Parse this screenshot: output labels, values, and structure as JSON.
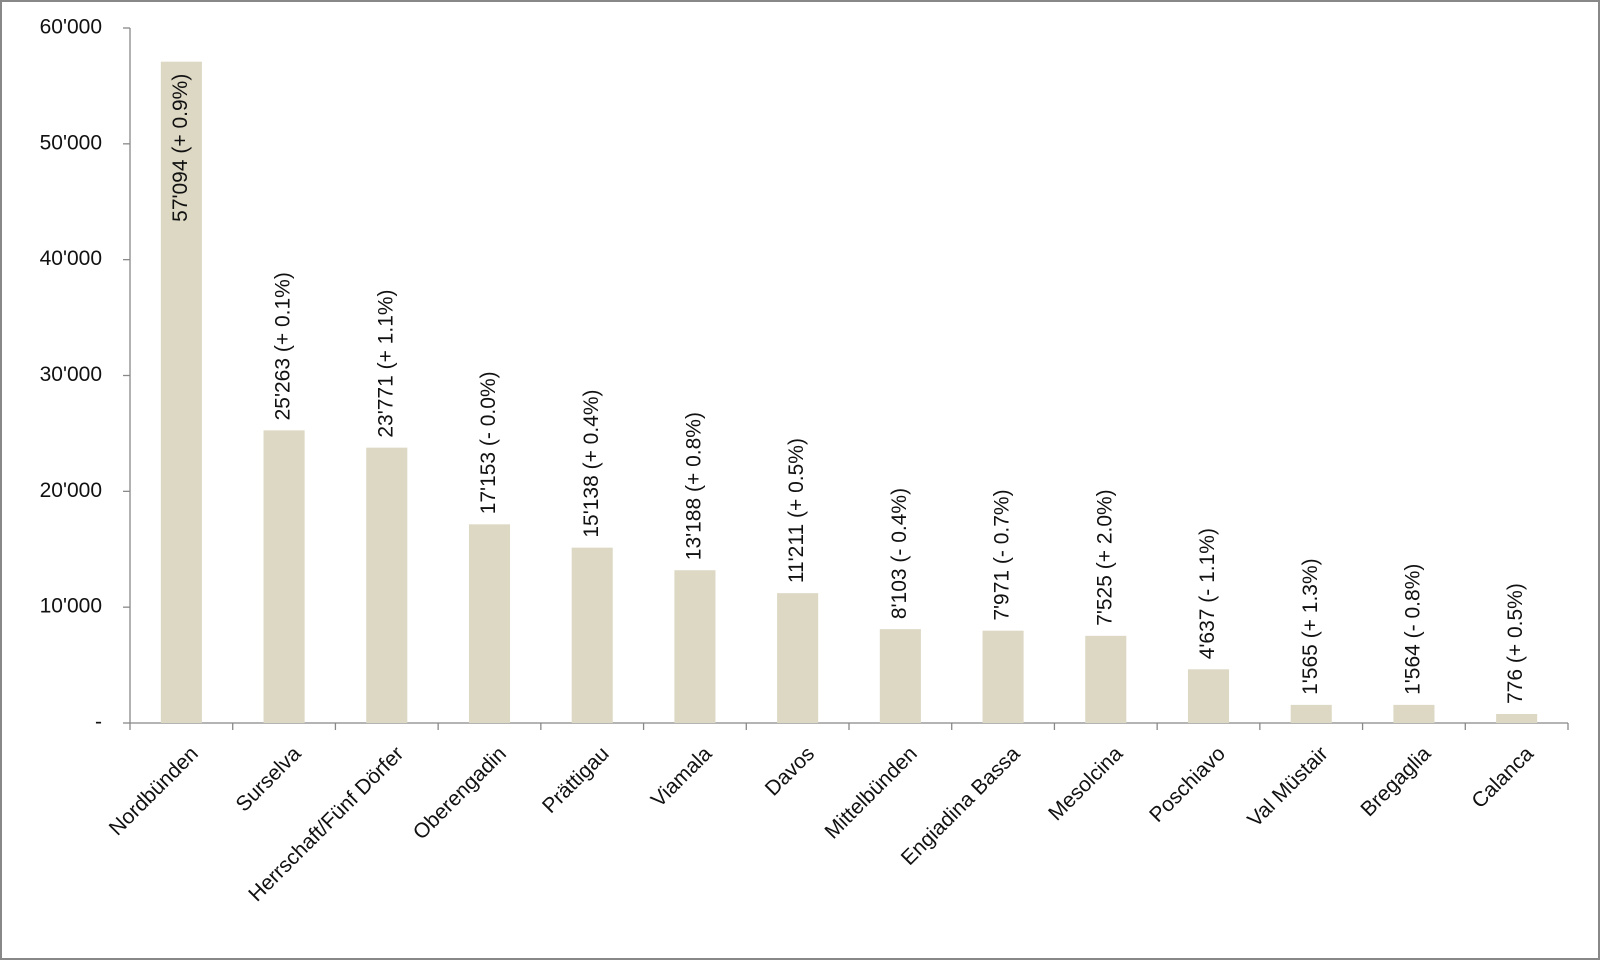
{
  "chart_data": {
    "type": "bar",
    "categories": [
      "Nordbünden",
      "Surselva",
      "Herrschaft/Fünf Dörfer",
      "Oberengadin",
      "Prättigau",
      "Viamala",
      "Davos",
      "Mittelbünden",
      "Engiadina Bassa",
      "Mesolcina",
      "Poschiavo",
      "Val Müstair",
      "Bregaglia",
      "Calanca"
    ],
    "values": [
      57094,
      25263,
      23771,
      17153,
      15138,
      13188,
      11211,
      8103,
      7971,
      7525,
      4637,
      1565,
      1564,
      776
    ],
    "value_labels": [
      "57'094  (+ 0.9%)",
      "25'263  (+ 0.1%)",
      "23'771  (+ 1.1%)",
      "17'153  (- 0.0%)",
      "15'138  (+ 0.4%)",
      "13'188  (+ 0.8%)",
      "11'211  (+ 0.5%)",
      "8'103  (- 0.4%)",
      "7'971  (- 0.7%)",
      "7'525  (+ 2.0%)",
      "4'637  (- 1.1%)",
      "1'565  (+ 1.3%)",
      "1'564  (- 0.8%)",
      "776  (+ 0.5%)"
    ],
    "color": "#ddd8c4",
    "ylim": [
      0,
      60000
    ],
    "yticks": [
      {
        "value": 0,
        "label": "-"
      },
      {
        "value": 10000,
        "label": "10'000"
      },
      {
        "value": 20000,
        "label": "20'000"
      },
      {
        "value": 30000,
        "label": "30'000"
      },
      {
        "value": 40000,
        "label": "40'000"
      },
      {
        "value": 50000,
        "label": "50'000"
      },
      {
        "value": 60000,
        "label": "60'000"
      }
    ],
    "grid": false
  }
}
